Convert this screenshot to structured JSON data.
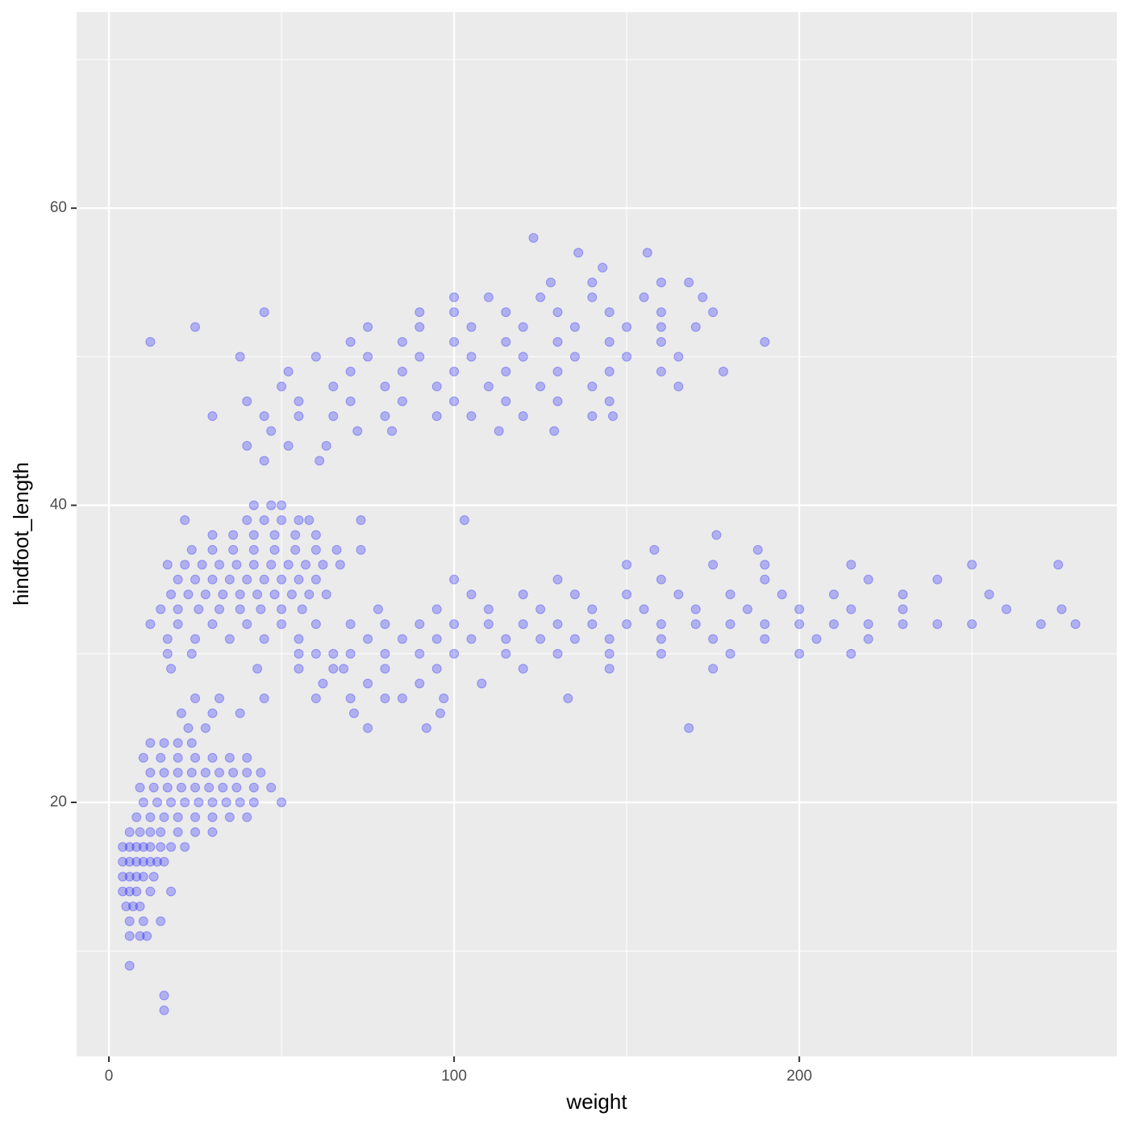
{
  "chart_data": {
    "type": "scatter",
    "x_label": "weight",
    "y_label": "hindfoot_length",
    "color": "#0000ff",
    "grid": true,
    "xlim": [
      -9.35,
      292
    ],
    "ylim": [
      2.9,
      73.2
    ],
    "xticks": [
      0,
      100,
      200
    ],
    "yticks": [
      20,
      40,
      60
    ],
    "x": [
      4,
      6,
      8,
      10,
      12,
      14,
      16,
      4,
      6,
      8,
      10,
      13,
      4,
      6,
      8,
      10,
      12,
      15,
      18,
      22,
      6,
      9,
      12,
      15,
      20,
      25,
      30,
      8,
      12,
      16,
      20,
      25,
      30,
      35,
      40,
      10,
      14,
      18,
      22,
      26,
      30,
      34,
      38,
      42,
      50,
      9,
      13,
      17,
      21,
      25,
      29,
      33,
      37,
      42,
      47,
      12,
      16,
      20,
      24,
      28,
      32,
      36,
      40,
      44,
      10,
      15,
      20,
      25,
      30,
      35,
      40,
      12,
      16,
      20,
      24,
      4,
      6,
      8,
      12,
      18,
      5,
      7,
      9,
      6,
      10,
      15,
      6,
      9,
      11,
      6,
      16,
      16,
      23,
      28,
      21,
      30,
      38,
      25,
      32,
      45,
      12,
      20,
      30,
      40,
      50,
      60,
      15,
      20,
      26,
      32,
      38,
      44,
      50,
      56,
      18,
      23,
      28,
      33,
      38,
      43,
      48,
      53,
      58,
      63,
      20,
      25,
      30,
      35,
      40,
      45,
      50,
      55,
      60,
      17,
      22,
      27,
      32,
      37,
      42,
      47,
      52,
      57,
      62,
      67,
      24,
      30,
      36,
      42,
      48,
      54,
      60,
      66,
      73,
      30,
      36,
      42,
      48,
      54,
      60,
      22,
      40,
      45,
      50,
      55,
      58,
      73,
      42,
      47,
      50,
      17,
      25,
      35,
      45,
      55,
      17,
      24,
      55,
      65,
      18,
      43,
      55,
      68,
      70,
      80,
      90,
      100,
      110,
      120,
      130,
      140,
      150,
      160,
      170,
      180,
      190,
      200,
      210,
      220,
      230,
      240,
      250,
      270,
      280,
      78,
      95,
      110,
      125,
      140,
      155,
      170,
      185,
      200,
      215,
      230,
      260,
      276,
      105,
      120,
      135,
      150,
      165,
      180,
      195,
      210,
      230,
      255,
      75,
      85,
      95,
      105,
      115,
      125,
      135,
      145,
      160,
      175,
      190,
      205,
      220,
      60,
      70,
      80,
      90,
      100,
      115,
      130,
      145,
      160,
      180,
      200,
      215,
      100,
      130,
      160,
      190,
      220,
      240,
      150,
      175,
      190,
      215,
      250,
      275,
      65,
      80,
      95,
      120,
      145,
      175,
      60,
      70,
      80,
      85,
      97,
      133,
      62,
      75,
      90,
      108,
      75,
      92,
      168,
      71,
      96,
      158,
      188,
      176,
      103,
      40,
      55,
      70,
      85,
      100,
      115,
      130,
      145,
      50,
      65,
      80,
      95,
      110,
      125,
      140,
      165,
      52,
      70,
      85,
      100,
      115,
      130,
      145,
      160,
      178,
      38,
      60,
      75,
      90,
      105,
      120,
      135,
      150,
      165,
      12,
      70,
      85,
      100,
      115,
      130,
      145,
      160,
      190,
      25,
      75,
      90,
      105,
      120,
      135,
      150,
      160,
      170,
      45,
      90,
      100,
      115,
      130,
      145,
      160,
      175,
      100,
      110,
      125,
      140,
      155,
      172,
      128,
      140,
      160,
      168,
      30,
      45,
      55,
      65,
      80,
      95,
      105,
      120,
      140,
      146,
      47,
      72,
      82,
      113,
      129,
      40,
      52,
      63,
      45,
      61,
      143,
      136,
      156,
      123
    ],
    "values": [
      16,
      16,
      16,
      16,
      16,
      16,
      16,
      15,
      15,
      15,
      15,
      15,
      17,
      17,
      17,
      17,
      17,
      17,
      17,
      17,
      18,
      18,
      18,
      18,
      18,
      18,
      18,
      19,
      19,
      19,
      19,
      19,
      19,
      19,
      19,
      20,
      20,
      20,
      20,
      20,
      20,
      20,
      20,
      20,
      20,
      21,
      21,
      21,
      21,
      21,
      21,
      21,
      21,
      21,
      21,
      22,
      22,
      22,
      22,
      22,
      22,
      22,
      22,
      22,
      23,
      23,
      23,
      23,
      23,
      23,
      23,
      24,
      24,
      24,
      24,
      14,
      14,
      14,
      14,
      14,
      13,
      13,
      13,
      12,
      12,
      12,
      11,
      11,
      11,
      9,
      7,
      6,
      25,
      25,
      26,
      26,
      26,
      27,
      27,
      27,
      32,
      32,
      32,
      32,
      32,
      32,
      33,
      33,
      33,
      33,
      33,
      33,
      33,
      33,
      34,
      34,
      34,
      34,
      34,
      34,
      34,
      34,
      34,
      34,
      35,
      35,
      35,
      35,
      35,
      35,
      35,
      35,
      35,
      36,
      36,
      36,
      36,
      36,
      36,
      36,
      36,
      36,
      36,
      36,
      37,
      37,
      37,
      37,
      37,
      37,
      37,
      37,
      37,
      38,
      38,
      38,
      38,
      38,
      38,
      39,
      39,
      39,
      39,
      39,
      39,
      39,
      40,
      40,
      40,
      31,
      31,
      31,
      31,
      31,
      30,
      30,
      30,
      30,
      29,
      29,
      29,
      29,
      32,
      32,
      32,
      32,
      32,
      32,
      32,
      32,
      32,
      32,
      32,
      32,
      32,
      32,
      32,
      32,
      32,
      32,
      32,
      32,
      32,
      33,
      33,
      33,
      33,
      33,
      33,
      33,
      33,
      33,
      33,
      33,
      33,
      33,
      34,
      34,
      34,
      34,
      34,
      34,
      34,
      34,
      34,
      34,
      31,
      31,
      31,
      31,
      31,
      31,
      31,
      31,
      31,
      31,
      31,
      31,
      31,
      30,
      30,
      30,
      30,
      30,
      30,
      30,
      30,
      30,
      30,
      30,
      30,
      35,
      35,
      35,
      35,
      35,
      35,
      36,
      36,
      36,
      36,
      36,
      36,
      29,
      29,
      29,
      29,
      29,
      29,
      27,
      27,
      27,
      27,
      27,
      27,
      28,
      28,
      28,
      28,
      25,
      25,
      25,
      26,
      26,
      37,
      37,
      38,
      39,
      47,
      47,
      47,
      47,
      47,
      47,
      47,
      47,
      48,
      48,
      48,
      48,
      48,
      48,
      48,
      48,
      49,
      49,
      49,
      49,
      49,
      49,
      49,
      49,
      49,
      50,
      50,
      50,
      50,
      50,
      50,
      50,
      50,
      50,
      51,
      51,
      51,
      51,
      51,
      51,
      51,
      51,
      51,
      52,
      52,
      52,
      52,
      52,
      52,
      52,
      52,
      52,
      53,
      53,
      53,
      53,
      53,
      53,
      53,
      53,
      54,
      54,
      54,
      54,
      54,
      54,
      55,
      55,
      55,
      55,
      46,
      46,
      46,
      46,
      46,
      46,
      46,
      46,
      46,
      46,
      45,
      45,
      45,
      45,
      45,
      44,
      44,
      44,
      43,
      43,
      56,
      57,
      57,
      58
    ]
  }
}
